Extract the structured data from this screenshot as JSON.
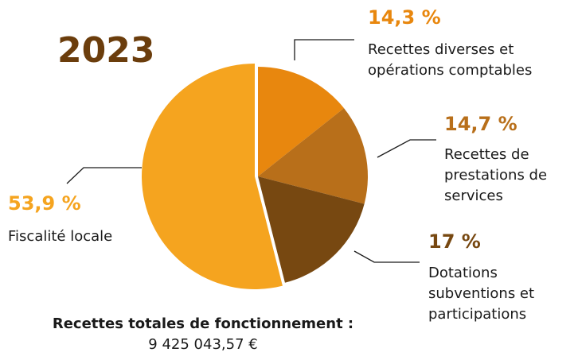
{
  "chart_data": {
    "type": "pie",
    "title": "2023",
    "categories": [
      "Recettes diverses et opérations comptables",
      "Recettes de prestations de services",
      "Dotations subventions et participations",
      "Fiscalité locale"
    ],
    "values": [
      14.3,
      14.7,
      17,
      53.9
    ],
    "value_labels": [
      "14,3 %",
      "14,7 %",
      "17 %",
      "53,9 %"
    ],
    "colors": [
      "#e8870e",
      "#b86f1a",
      "#774811",
      "#f5a41f"
    ],
    "total_label": "Recettes totales de fonctionnement :",
    "total_value": "9 425 043,57 €"
  }
}
